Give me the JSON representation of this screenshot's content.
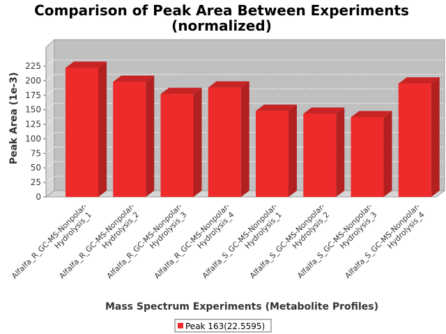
{
  "chart_data": {
    "type": "bar",
    "title_lines": [
      "Comparison of Peak Area Between Experiments",
      "(normalized)"
    ],
    "xlabel": "Mass Spectrum Experiments (Metabolite Profiles)",
    "ylabel": "Peak Area (1e-3)",
    "ylim": [
      0,
      235
    ],
    "yticks": [
      0,
      25,
      50,
      75,
      100,
      125,
      150,
      175,
      200,
      225
    ],
    "grid": true,
    "legend_position": "bottom",
    "categories": [
      [
        "Alfalfa_R_GC-MS-Nonpolar-",
        "Hydrolysis_1"
      ],
      [
        "Alfalfa_R_GC-MS-Nonpolar-",
        "Hydrolysis_2"
      ],
      [
        "Alfalfa_R_GC-MS-Nonpolar-",
        "Hydrolysis_3"
      ],
      [
        "Alfalfa_R_GC-MS-Nonpolar-",
        "Hydrolysis_4"
      ],
      [
        "Alfalfa_S_GC-MS-Nonpolar-",
        "Hydrolysis_1"
      ],
      [
        "Alfalfa_S_GC-MS-Nonpolar-",
        "Hydrolysis_2"
      ],
      [
        "Alfalfa_S_GC-MS-Nonpolar-",
        "Hydrolysis_3"
      ],
      [
        "Alfalfa_S_GC-MS-Nonpolar-",
        "Hydrolysis_4"
      ]
    ],
    "series": [
      {
        "name": "Peak 163(22.5595)",
        "color": "#ee2a2a",
        "values": [
          222,
          198,
          177,
          188,
          148,
          143,
          137,
          195
        ]
      }
    ]
  }
}
